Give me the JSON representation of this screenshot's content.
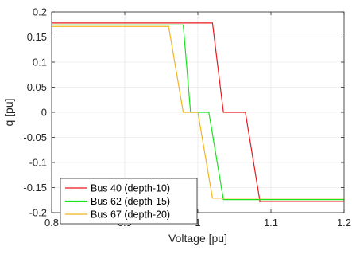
{
  "chart_data": {
    "type": "line",
    "title": "",
    "xlabel": "Voltage [pu]",
    "ylabel": "q [pu]",
    "xlim": [
      0.8,
      1.2
    ],
    "ylim": [
      -0.2,
      0.2
    ],
    "xticks": [
      0.8,
      0.9,
      1.0,
      1.1,
      1.2
    ],
    "xtick_labels": [
      "0.8",
      "0.9",
      "1",
      "1.1",
      "1.2"
    ],
    "yticks": [
      0.2,
      0.15,
      0.1,
      0.05,
      0,
      -0.05,
      -0.1,
      -0.15,
      -0.2
    ],
    "ytick_labels": [
      "0.2",
      "0.15",
      "0.1",
      "0.05",
      "0",
      "-0.05",
      "-0.1",
      "-0.15",
      "-0.2"
    ],
    "grid": true,
    "legend_position": "bottom-left",
    "series": [
      {
        "name": "Bus 40 (depth-10)",
        "color": "#e8191c",
        "x": [
          0.8,
          1.02,
          1.035,
          1.065,
          1.085,
          1.2
        ],
        "y": [
          0.178,
          0.178,
          0.0,
          0.0,
          -0.178,
          -0.178
        ]
      },
      {
        "name": "Bus 62 (depth-15)",
        "color": "#18e41a",
        "x": [
          0.8,
          0.98,
          0.99,
          1.015,
          1.035,
          1.2
        ],
        "y": [
          0.174,
          0.174,
          0.0,
          0.0,
          -0.174,
          -0.174
        ]
      },
      {
        "name": "Bus 67 (depth-20)",
        "color": "#f2b51c",
        "x": [
          0.8,
          0.96,
          0.98,
          1.0,
          1.02,
          1.2
        ],
        "y": [
          0.171,
          0.171,
          0.0,
          0.0,
          -0.171,
          -0.171
        ]
      }
    ]
  }
}
